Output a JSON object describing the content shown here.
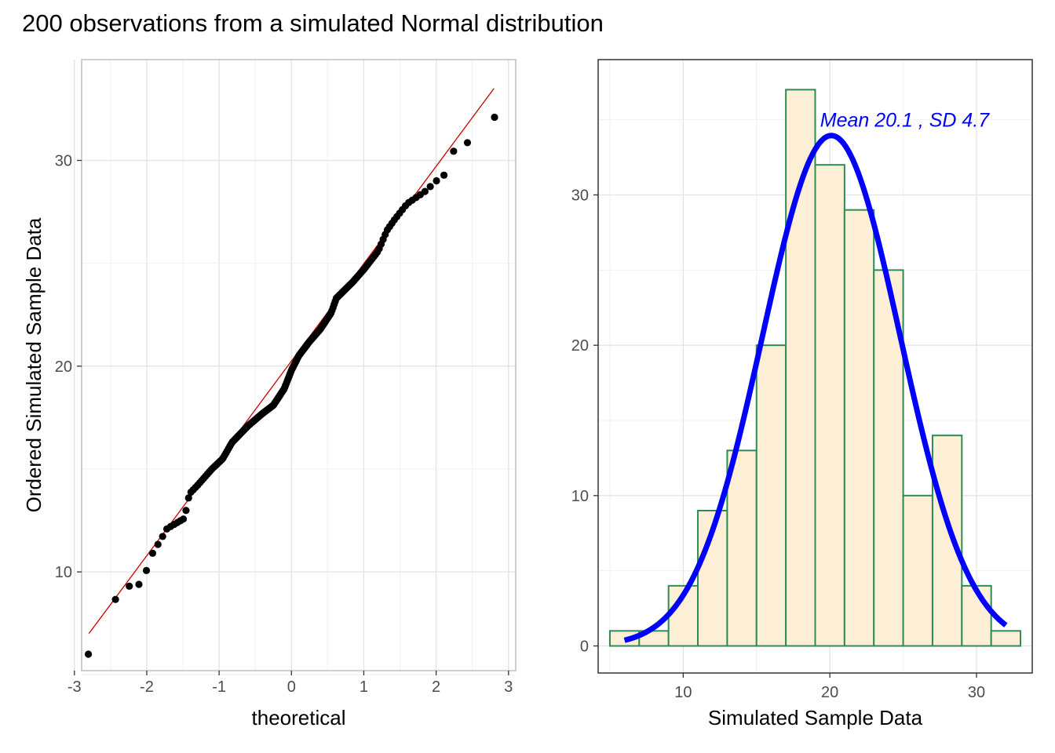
{
  "page": {
    "title": "200 observations from a simulated Normal distribution"
  },
  "chart_data": [
    {
      "type": "scatter",
      "subtype": "qq-plot",
      "xlabel": "theoretical",
      "ylabel": "Ordered Simulated Sample Data",
      "xlim": [
        -2.9,
        3.1
      ],
      "ylim": [
        5.2,
        34.9
      ],
      "x_ticks": [
        -3,
        -2,
        -1,
        0,
        1,
        2,
        3
      ],
      "x_tick_labels": [
        "-3",
        "-2",
        "-1",
        "0",
        "1",
        "2",
        "3"
      ],
      "y_ticks": [
        10,
        20,
        30
      ],
      "y_tick_labels": [
        "10",
        "20",
        "30"
      ],
      "grid": true,
      "panel_border": true,
      "point_color": "#000000",
      "line_color": "#cc0000",
      "reference_line": {
        "x": [
          -2.8,
          2.8
        ],
        "y": [
          7.0,
          33.5
        ]
      },
      "anchor_points": [
        [
          -2.8,
          6.0
        ],
        [
          -2.45,
          8.6
        ],
        [
          -2.25,
          9.3
        ],
        [
          -2.1,
          9.4
        ],
        [
          -2.0,
          10.1
        ],
        [
          -1.92,
          10.9
        ],
        [
          -1.8,
          11.6
        ],
        [
          -1.72,
          12.1
        ],
        [
          -1.6,
          12.35
        ],
        [
          -1.48,
          12.6
        ],
        [
          -1.41,
          13.8
        ],
        [
          -1.3,
          14.2
        ],
        [
          -1.1,
          15.0
        ],
        [
          -0.95,
          15.5
        ],
        [
          -0.82,
          16.3
        ],
        [
          -0.6,
          17.1
        ],
        [
          -0.4,
          17.7
        ],
        [
          -0.25,
          18.1
        ],
        [
          -0.1,
          18.9
        ],
        [
          0.0,
          19.8
        ],
        [
          0.1,
          20.5
        ],
        [
          0.25,
          21.2
        ],
        [
          0.4,
          21.8
        ],
        [
          0.55,
          22.6
        ],
        [
          0.62,
          23.3
        ],
        [
          0.85,
          24.1
        ],
        [
          1.0,
          24.7
        ],
        [
          1.2,
          25.6
        ],
        [
          1.32,
          26.6
        ],
        [
          1.42,
          27.1
        ],
        [
          1.6,
          27.9
        ],
        [
          1.85,
          28.5
        ],
        [
          2.0,
          29.0
        ],
        [
          2.1,
          29.2
        ],
        [
          2.22,
          30.4
        ],
        [
          2.45,
          30.9
        ],
        [
          2.8,
          32.1
        ]
      ]
    },
    {
      "type": "bar",
      "subtype": "histogram",
      "xlabel": "Simulated Sample Data",
      "ylabel": "",
      "xlim": [
        4.2,
        33.8
      ],
      "ylim": [
        -1.8,
        39.0
      ],
      "x_ticks": [
        10,
        20,
        30
      ],
      "x_tick_labels": [
        "10",
        "20",
        "30"
      ],
      "y_ticks": [
        0,
        10,
        20,
        30
      ],
      "y_tick_labels": [
        "0",
        "10",
        "20",
        "30"
      ],
      "grid": true,
      "panel_border": true,
      "bar_fill": "#fcefd6",
      "bar_stroke": "#2e8b57",
      "curve_color": "#0000ff",
      "bins": [
        {
          "x0": 5,
          "x1": 7,
          "count": 1
        },
        {
          "x0": 7,
          "x1": 9,
          "count": 1
        },
        {
          "x0": 9,
          "x1": 11,
          "count": 4
        },
        {
          "x0": 11,
          "x1": 13,
          "count": 9
        },
        {
          "x0": 13,
          "x1": 15,
          "count": 13
        },
        {
          "x0": 15,
          "x1": 17,
          "count": 20
        },
        {
          "x0": 17,
          "x1": 19,
          "count": 37
        },
        {
          "x0": 19,
          "x1": 21,
          "count": 32
        },
        {
          "x0": 21,
          "x1": 23,
          "count": 29
        },
        {
          "x0": 23,
          "x1": 25,
          "count": 25
        },
        {
          "x0": 25,
          "x1": 27,
          "count": 10
        },
        {
          "x0": 27,
          "x1": 29,
          "count": 14
        },
        {
          "x0": 29,
          "x1": 31,
          "count": 4
        },
        {
          "x0": 31,
          "x1": 33,
          "count": 1
        }
      ],
      "density_curve": {
        "mean": 20.1,
        "sd": 4.7,
        "n": 200,
        "binwidth": 2,
        "x_range": [
          6,
          32
        ]
      },
      "annotation": {
        "text": "Mean 20.1 , SD 4.7",
        "x": 25.1,
        "y": 35.0
      }
    }
  ]
}
